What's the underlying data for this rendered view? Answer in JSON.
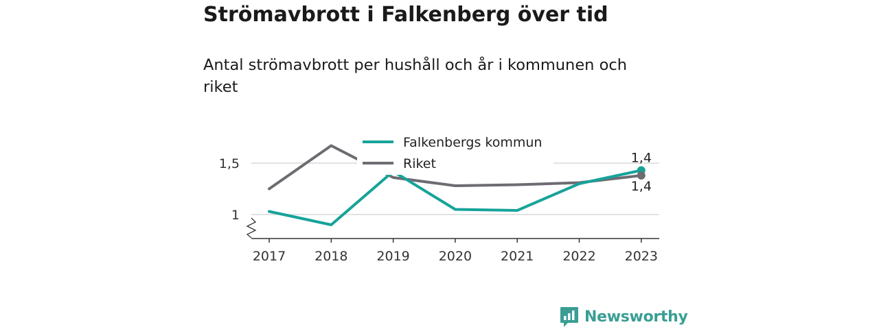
{
  "title": "Strömavbrott i Falkenberg över tid",
  "subtitle": "Antal strömavbrott per hushåll och år i kommunen och riket",
  "brand": {
    "name": "Newsworthy",
    "color": "#3a9e95",
    "icon": "newsworthy-bar-chart-icon"
  },
  "chart_data": {
    "type": "line",
    "title": "Strömavbrott i Falkenberg över tid",
    "subtitle": "Antal strömavbrott per hushåll och år i kommunen och riket",
    "xlabel": "",
    "ylabel": "",
    "x": [
      "2017",
      "2018",
      "2019",
      "2020",
      "2021",
      "2022",
      "2023"
    ],
    "ylim": [
      0.8,
      1.6
    ],
    "axis_break": true,
    "yticks": [
      {
        "value": 1,
        "label": "1"
      },
      {
        "value": 1.5,
        "label": "1,5"
      }
    ],
    "grid": true,
    "legend_position": "top-center",
    "series": [
      {
        "name": "Falkenbergs kommun",
        "color": "#16a399",
        "values": [
          1.03,
          0.9,
          1.42,
          1.05,
          1.04,
          1.3,
          1.43
        ],
        "end_label": "1,4"
      },
      {
        "name": "Riket",
        "color": "#6d6c72",
        "values": [
          1.25,
          1.67,
          1.36,
          1.28,
          1.29,
          1.31,
          1.38
        ],
        "end_label": "1,4"
      }
    ]
  }
}
